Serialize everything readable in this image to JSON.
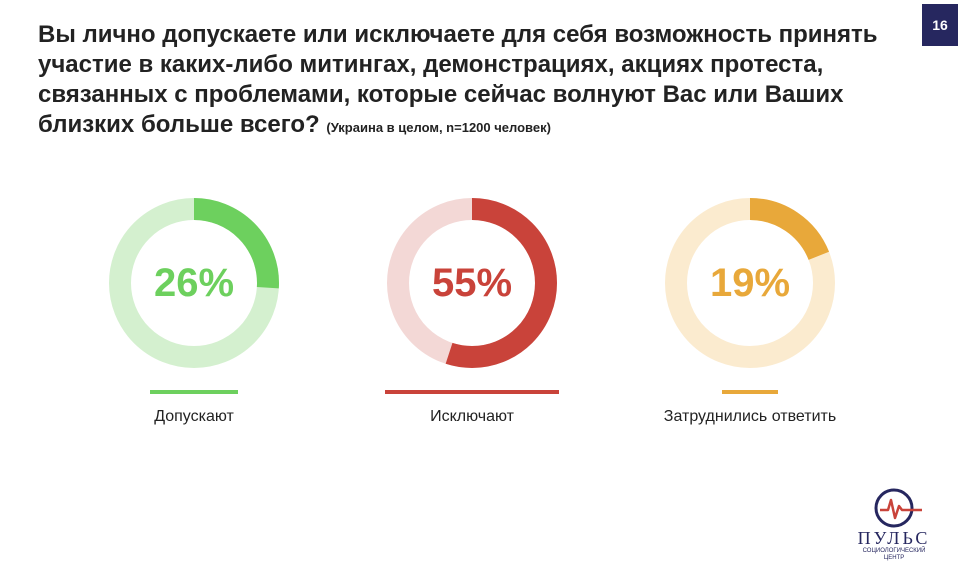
{
  "header": {
    "title": "Вы лично допускаете или исключаете для себя возможность принять участие в каких-либо митингах, демонстрациях, акциях протеста, связанных с проблемами, которые сейчас волнуют Вас или Ваших близких больше всего?",
    "subtitle": "(Украина в целом, n=1200 человек)",
    "page_number": "16"
  },
  "chart_data": {
    "type": "pie",
    "series": [
      {
        "name": "Допускают",
        "value": 26,
        "label": "26%",
        "color": "#6dd05e",
        "track_color": "#d4f0cf"
      },
      {
        "name": "Исключают",
        "value": 55,
        "label": "55%",
        "color": "#c9433a",
        "track_color": "#f3d8d6"
      },
      {
        "name": "Затруднились ответить",
        "value": 19,
        "label": "19%",
        "color": "#e8a83a",
        "track_color": "#fbebcf"
      }
    ]
  },
  "logo": {
    "name": "ПУЛЬС",
    "subtitle_line1": "СОЦИОЛОГИЧЕСКИЙ",
    "subtitle_line2": "ЦЕНТР"
  }
}
